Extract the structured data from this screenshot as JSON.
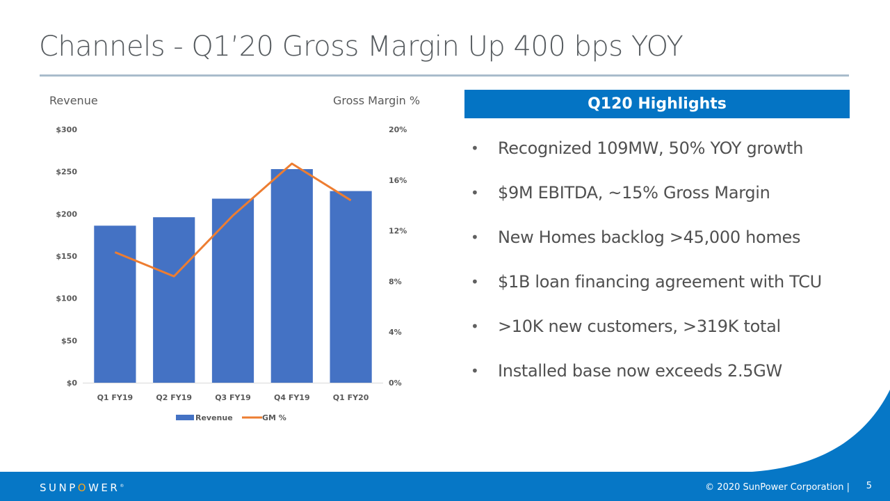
{
  "slide": {
    "title": "Channels - Q1’20 Gross Margin Up 400 bps YOY",
    "brand_color": "#0677c6",
    "page_number": "5",
    "copyright": "© 2020 SunPower Corporation |",
    "logo_text": "SUNPOWER",
    "logo_parts": [
      "SUNP",
      "O",
      "WER"
    ],
    "logo_mark": "®"
  },
  "highlights": {
    "header": "Q120 Highlights",
    "items": [
      "Recognized 109MW, 50% YOY growth",
      "$9M EBITDA, ~15% Gross Margin",
      "New Homes backlog >45,000 homes",
      "$1B loan financing agreement with TCU",
      ">10K new customers, >319K total",
      "Installed base now exceeds 2.5GW"
    ],
    "bullet": "•"
  },
  "chart_data": {
    "type": "bar",
    "title": "",
    "categories": [
      "Q1 FY19",
      "Q2 FY19",
      "Q3 FY19",
      "Q4 FY19",
      "Q1 FY20"
    ],
    "ylabel": "Revenue",
    "y2label": "Gross Margin %",
    "ylim": [
      0,
      300
    ],
    "y2lim": [
      0,
      20
    ],
    "yticks": [
      "$0",
      "$50",
      "$100",
      "$150",
      "$200",
      "$250",
      "$300"
    ],
    "ytick_values": [
      0,
      50,
      100,
      150,
      200,
      250,
      300
    ],
    "y2ticks": [
      "0%",
      "4%",
      "8%",
      "12%",
      "16%",
      "20%"
    ],
    "y2tick_values": [
      0,
      4,
      8,
      12,
      16,
      20
    ],
    "grid": false,
    "legend_position": "bottom",
    "series": [
      {
        "name": "Revenue",
        "type": "bar",
        "axis": "left",
        "color": "#4472c4",
        "values": [
          186,
          196,
          218,
          253,
          227
        ]
      },
      {
        "name": "GM %",
        "type": "line",
        "axis": "right",
        "color": "#ed7d31",
        "values": [
          10.3,
          8.4,
          13.2,
          17.3,
          14.4
        ]
      }
    ]
  }
}
